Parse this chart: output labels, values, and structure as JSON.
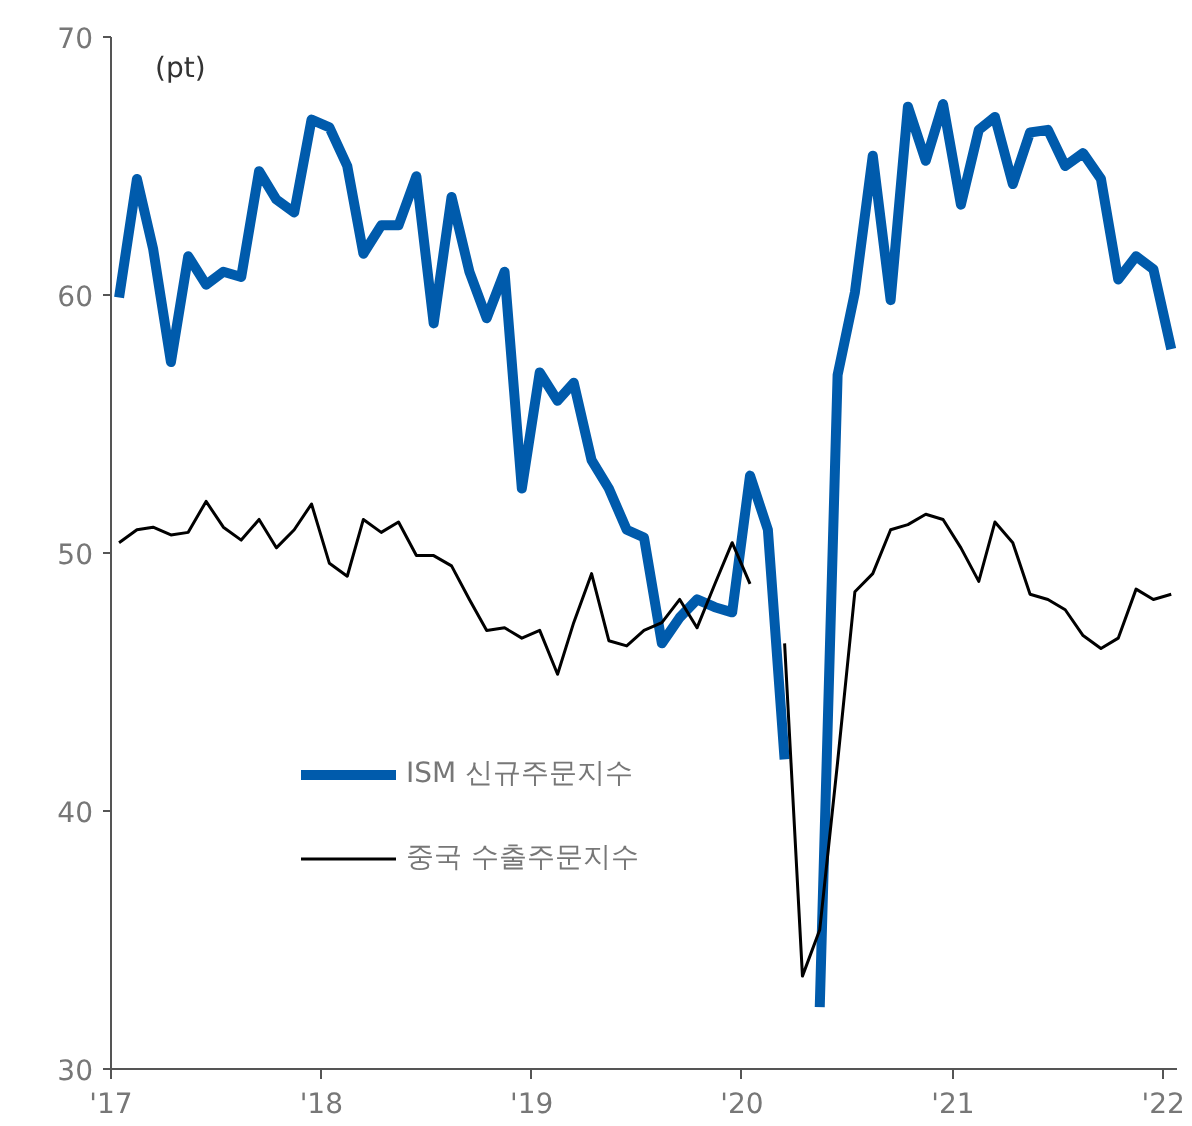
{
  "chart_data": {
    "type": "line",
    "ylabel": "(pt)",
    "x": [
      "2017-01-15",
      "2017-02-15",
      "2017-03-15",
      "2017-04-15",
      "2017-05-15",
      "2017-06-15",
      "2017-07-15",
      "2017-08-15",
      "2017-09-15",
      "2017-10-15",
      "2017-11-15",
      "2017-12-15",
      "2018-01-15",
      "2018-02-15",
      "2018-03-15",
      "2018-04-15",
      "2018-05-15",
      "2018-06-15",
      "2018-07-15",
      "2018-08-15",
      "2018-09-15",
      "2018-10-15",
      "2018-11-15",
      "2018-12-15",
      "2019-01-15",
      "2019-02-15",
      "2019-03-15",
      "2019-04-15",
      "2019-05-15",
      "2019-06-15",
      "2019-07-15",
      "2019-08-15",
      "2019-09-15",
      "2019-10-15",
      "2019-11-15",
      "2019-12-15",
      "2020-01-15",
      "2020-02-15",
      "2020-03-15",
      "2020-04-15",
      "2020-05-15",
      "2020-06-15",
      "2020-07-15",
      "2020-08-15",
      "2020-09-15",
      "2020-10-15",
      "2020-11-15",
      "2020-12-15",
      "2021-01-15",
      "2021-02-15",
      "2021-03-15",
      "2021-04-15",
      "2021-05-15",
      "2021-06-15",
      "2021-07-15",
      "2021-08-15",
      "2021-09-15",
      "2021-10-15",
      "2021-11-15",
      "2021-12-15",
      "2022-01-15"
    ],
    "series": [
      {
        "name": "ISM 신규주문지수",
        "color": "#005bac",
        "values": [
          59.9,
          64.5,
          61.8,
          57.4,
          61.5,
          60.4,
          60.9,
          60.7,
          64.8,
          63.7,
          63.2,
          66.8,
          66.5,
          65.0,
          61.6,
          62.7,
          62.7,
          64.6,
          58.9,
          63.8,
          60.9,
          59.1,
          60.9,
          52.5,
          57.0,
          55.9,
          56.6,
          53.6,
          52.5,
          50.9,
          50.6,
          46.5,
          47.5,
          48.2,
          47.9,
          47.7,
          53.0,
          50.9,
          42.0,
          null,
          32.4,
          56.9,
          60.1,
          65.4,
          59.8,
          67.3,
          65.2,
          67.4,
          63.5,
          66.4,
          66.9,
          64.3,
          66.3,
          66.4,
          65.0,
          65.5,
          64.5,
          60.6,
          61.5,
          61.0,
          57.9
        ]
      },
      {
        "name": "중국 수출주문지수",
        "color": "#000000",
        "values": [
          50.4,
          50.9,
          51.0,
          50.7,
          50.8,
          52.0,
          51.0,
          50.5,
          51.3,
          50.2,
          50.9,
          51.9,
          49.6,
          49.1,
          51.3,
          50.8,
          51.2,
          49.9,
          49.9,
          49.5,
          48.2,
          47.0,
          47.1,
          46.7,
          47.0,
          45.3,
          47.3,
          49.2,
          46.6,
          46.4,
          47.0,
          47.3,
          48.2,
          47.1,
          48.8,
          50.4,
          48.8,
          null,
          46.5,
          33.6,
          35.4,
          41.9,
          48.5,
          49.2,
          50.9,
          51.1,
          51.5,
          51.3,
          50.2,
          48.9,
          51.2,
          50.4,
          48.4,
          48.2,
          47.8,
          46.8,
          46.3,
          46.7,
          48.6,
          48.2,
          48.4
        ]
      }
    ],
    "xlim": [
      "2017-01-01",
      "2022-01-25"
    ],
    "xticks": [
      {
        "value": "2017-01-01",
        "label": "'17"
      },
      {
        "value": "2018-01-01",
        "label": "'18"
      },
      {
        "value": "2019-01-01",
        "label": "'19"
      },
      {
        "value": "2020-01-01",
        "label": "'20"
      },
      {
        "value": "2021-01-01",
        "label": "'21"
      },
      {
        "value": "2022-01-01",
        "label": "'22"
      }
    ],
    "ylim": [
      30,
      70
    ],
    "yticks": [
      30,
      40,
      50,
      60,
      70
    ],
    "grid": false,
    "legend": "bottom left",
    "marker": "none",
    "line_style": "solid"
  }
}
